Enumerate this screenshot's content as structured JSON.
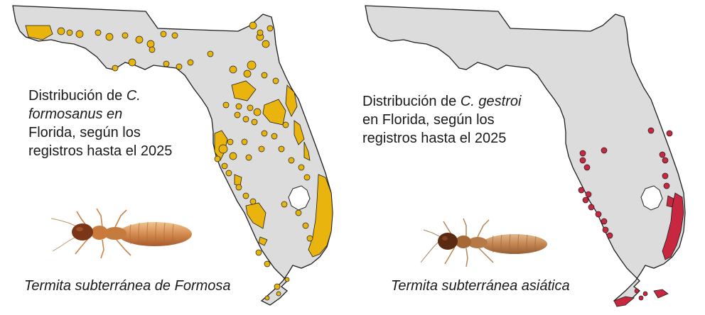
{
  "colors": {
    "land": "#dcdcdc",
    "outline": "#1e1e1e",
    "lake": "#ffffff",
    "formosanus": "#e9b40d",
    "gestroi": "#c8283f"
  },
  "panels": [
    {
      "id": "formosanus",
      "caption": {
        "l1a": "Distribución de ",
        "l1b": "C.",
        "l2a": "formosanus en",
        "l3": " Florida, según los",
        "l4": "registros hasta el 2025"
      },
      "species_label": "Termita subterránea de Formosa",
      "icon": "termite-photo"
    },
    {
      "id": "gestroi",
      "caption": {
        "l1a": "Distribución de ",
        "l1b": "C. gestroi",
        "l2": "en Florida, según los",
        "l3": "registros hasta el 2025"
      },
      "species_label": "Termita subterránea asiática",
      "icon": "termite-photo"
    }
  ]
}
